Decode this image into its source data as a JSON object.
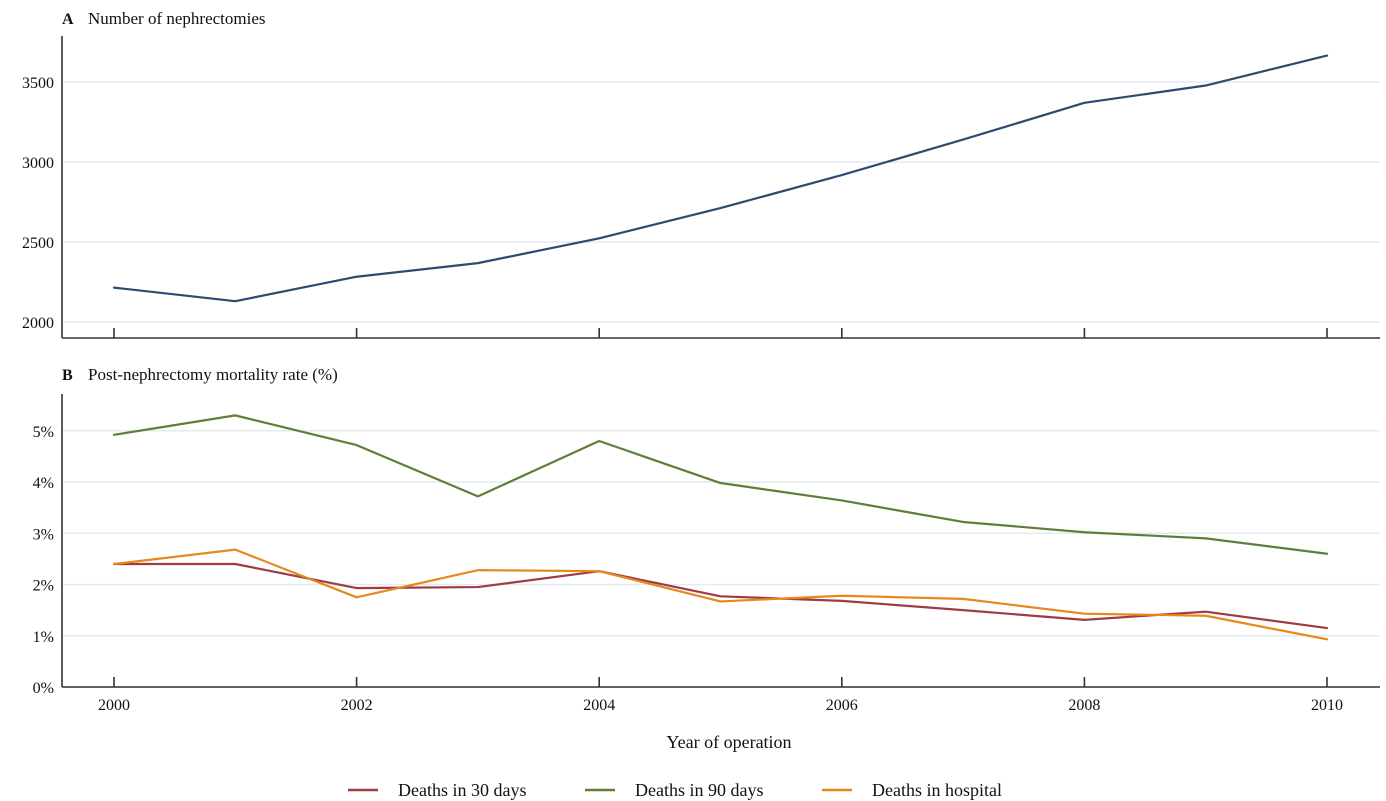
{
  "chart_data": [
    {
      "type": "line",
      "panel_letter": "A",
      "title": "Number of nephrectomies",
      "x": [
        2000,
        2001,
        2002,
        2003,
        2004,
        2005,
        2006,
        2007,
        2008,
        2009,
        2010
      ],
      "xticks": [
        2000,
        2002,
        2004,
        2006,
        2008,
        2010
      ],
      "yticks": [
        2000,
        2500,
        3000,
        3500
      ],
      "ytick_labels": [
        "2000",
        "2500",
        "3000",
        "3500"
      ],
      "ylim": [
        1900,
        3750
      ],
      "grid": true,
      "series": [
        {
          "values": [
            2215,
            2130,
            2283,
            2368,
            2523,
            2712,
            2918,
            3140,
            3370,
            3478,
            3665
          ],
          "color": "#2b4c6f"
        }
      ]
    },
    {
      "type": "line",
      "panel_letter": "B",
      "title": "Post-nephrectomy mortality rate (%)",
      "x": [
        2000,
        2001,
        2002,
        2003,
        2004,
        2005,
        2006,
        2007,
        2008,
        2009,
        2010
      ],
      "xticks": [
        2000,
        2002,
        2004,
        2006,
        2008,
        2010
      ],
      "xtick_labels": [
        "2000",
        "2002",
        "2004",
        "2006",
        "2008",
        "2010"
      ],
      "xlabel": "Year of operation",
      "yticks": [
        0,
        1,
        2,
        3,
        4,
        5
      ],
      "ytick_labels": [
        "0%",
        "1%",
        "2%",
        "3%",
        "4%",
        "5%"
      ],
      "ylim": [
        0,
        5.6
      ],
      "grid": true,
      "legend_position": "bottom",
      "series": [
        {
          "name": "Deaths in 30 days",
          "values": [
            2.4,
            2.4,
            1.93,
            1.95,
            2.26,
            1.77,
            1.68,
            1.5,
            1.31,
            1.47,
            1.15
          ],
          "color": "#9e3b45"
        },
        {
          "name": "Deaths in 90 days",
          "values": [
            4.92,
            5.3,
            4.72,
            3.72,
            4.8,
            3.98,
            3.64,
            3.22,
            3.02,
            2.9,
            2.6
          ],
          "color": "#5e7f3a"
        },
        {
          "name": "Deaths in hospital",
          "values": [
            2.4,
            2.68,
            1.75,
            2.28,
            2.26,
            1.67,
            1.78,
            1.72,
            1.43,
            1.39,
            0.93
          ],
          "color": "#e8871c"
        }
      ]
    }
  ]
}
